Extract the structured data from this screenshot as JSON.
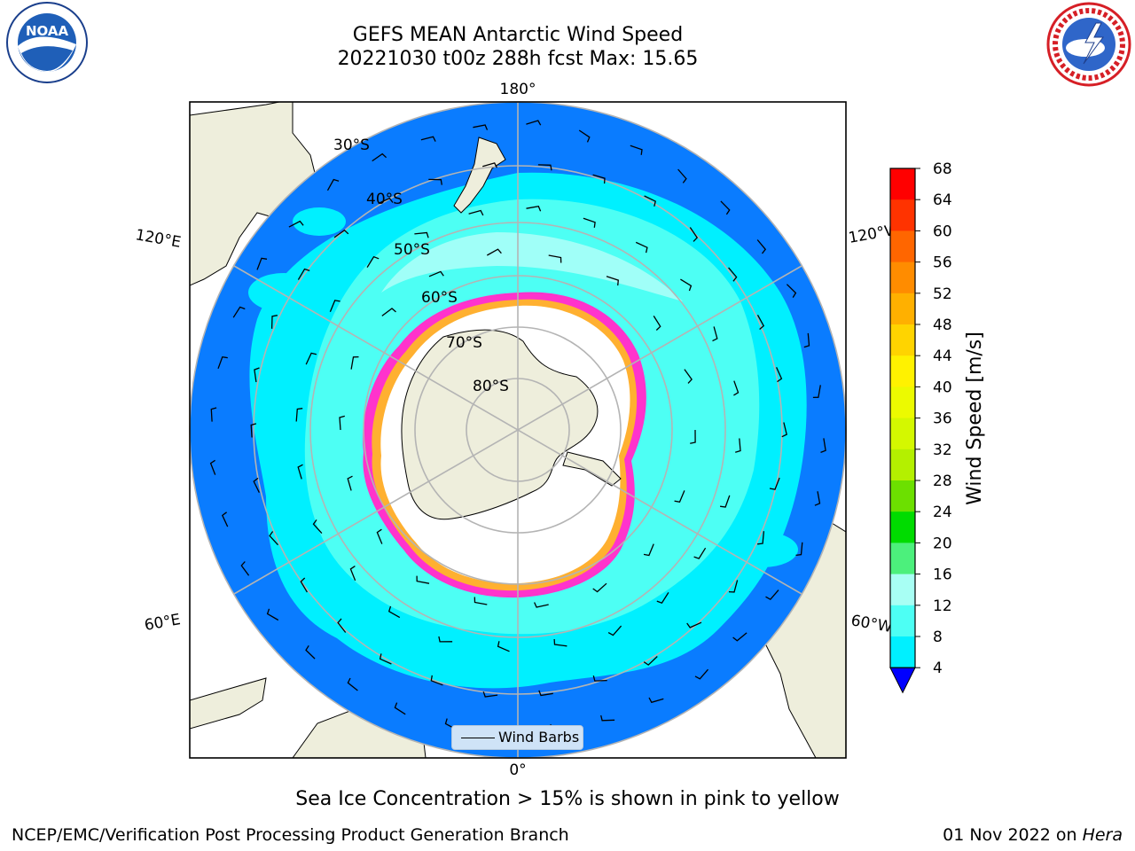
{
  "title": {
    "line1": "GEFS MEAN Antarctic Wind Speed",
    "line2": "20221030 t00z 288h fcst   Max: 15.65"
  },
  "logos": {
    "left": {
      "name": "noaa-logo",
      "text": "NOAA",
      "ring_text": "NATIONAL OCEANIC AND ATMOSPHERIC ADMINISTRATION · U.S. DEPARTMENT OF COMMERCE"
    },
    "right": {
      "name": "nws-logo",
      "ring_text": "NATIONAL WEATHER SERVICE"
    }
  },
  "map": {
    "projection": "south-polar-stereographic",
    "latitude_labels": [
      "30°S",
      "40°S",
      "50°S",
      "60°S",
      "70°S",
      "80°S"
    ],
    "longitude_labels": {
      "top": "180°",
      "bottom": "0°",
      "upper_left": "120°E",
      "upper_right": "120°W",
      "lower_left": "60°E",
      "lower_right": "60°W"
    },
    "legend": {
      "label": "Wind Barbs"
    }
  },
  "colorbar": {
    "label": "Wind Speed [m/s]",
    "ticks": [
      "68",
      "64",
      "60",
      "56",
      "52",
      "48",
      "44",
      "40",
      "36",
      "32",
      "28",
      "24",
      "20",
      "16",
      "12",
      "8",
      "4"
    ],
    "colors": [
      "#ff0000",
      "#ff3300",
      "#ff6600",
      "#ff8c00",
      "#ffb000",
      "#ffd400",
      "#fff200",
      "#ecfa00",
      "#d4f800",
      "#b4f000",
      "#6ce000",
      "#00dc00",
      "#4cf07c",
      "#a8fff4",
      "#4dfff4",
      "#00f0ff",
      "#0078ff"
    ],
    "extend_color": "#0000ff"
  },
  "colors": {
    "ocean_outer": "#0a7cff",
    "ocean_mid": "#00f0ff",
    "ocean_light": "#4dfff4",
    "ocean_pale": "#a0fff8",
    "land": "#eeeedc",
    "sea_ice_edge": "#ff33cc",
    "sea_ice_orange": "#ffb030",
    "antarctica": "#eeeedc"
  },
  "footnote": "Sea Ice Concentration > 15% is shown in pink to yellow",
  "credit": "NCEP/EMC/Verification Post Processing Product Generation Branch",
  "date_stamp": {
    "date": "01 Nov 2022 on ",
    "machine": "Hera"
  }
}
